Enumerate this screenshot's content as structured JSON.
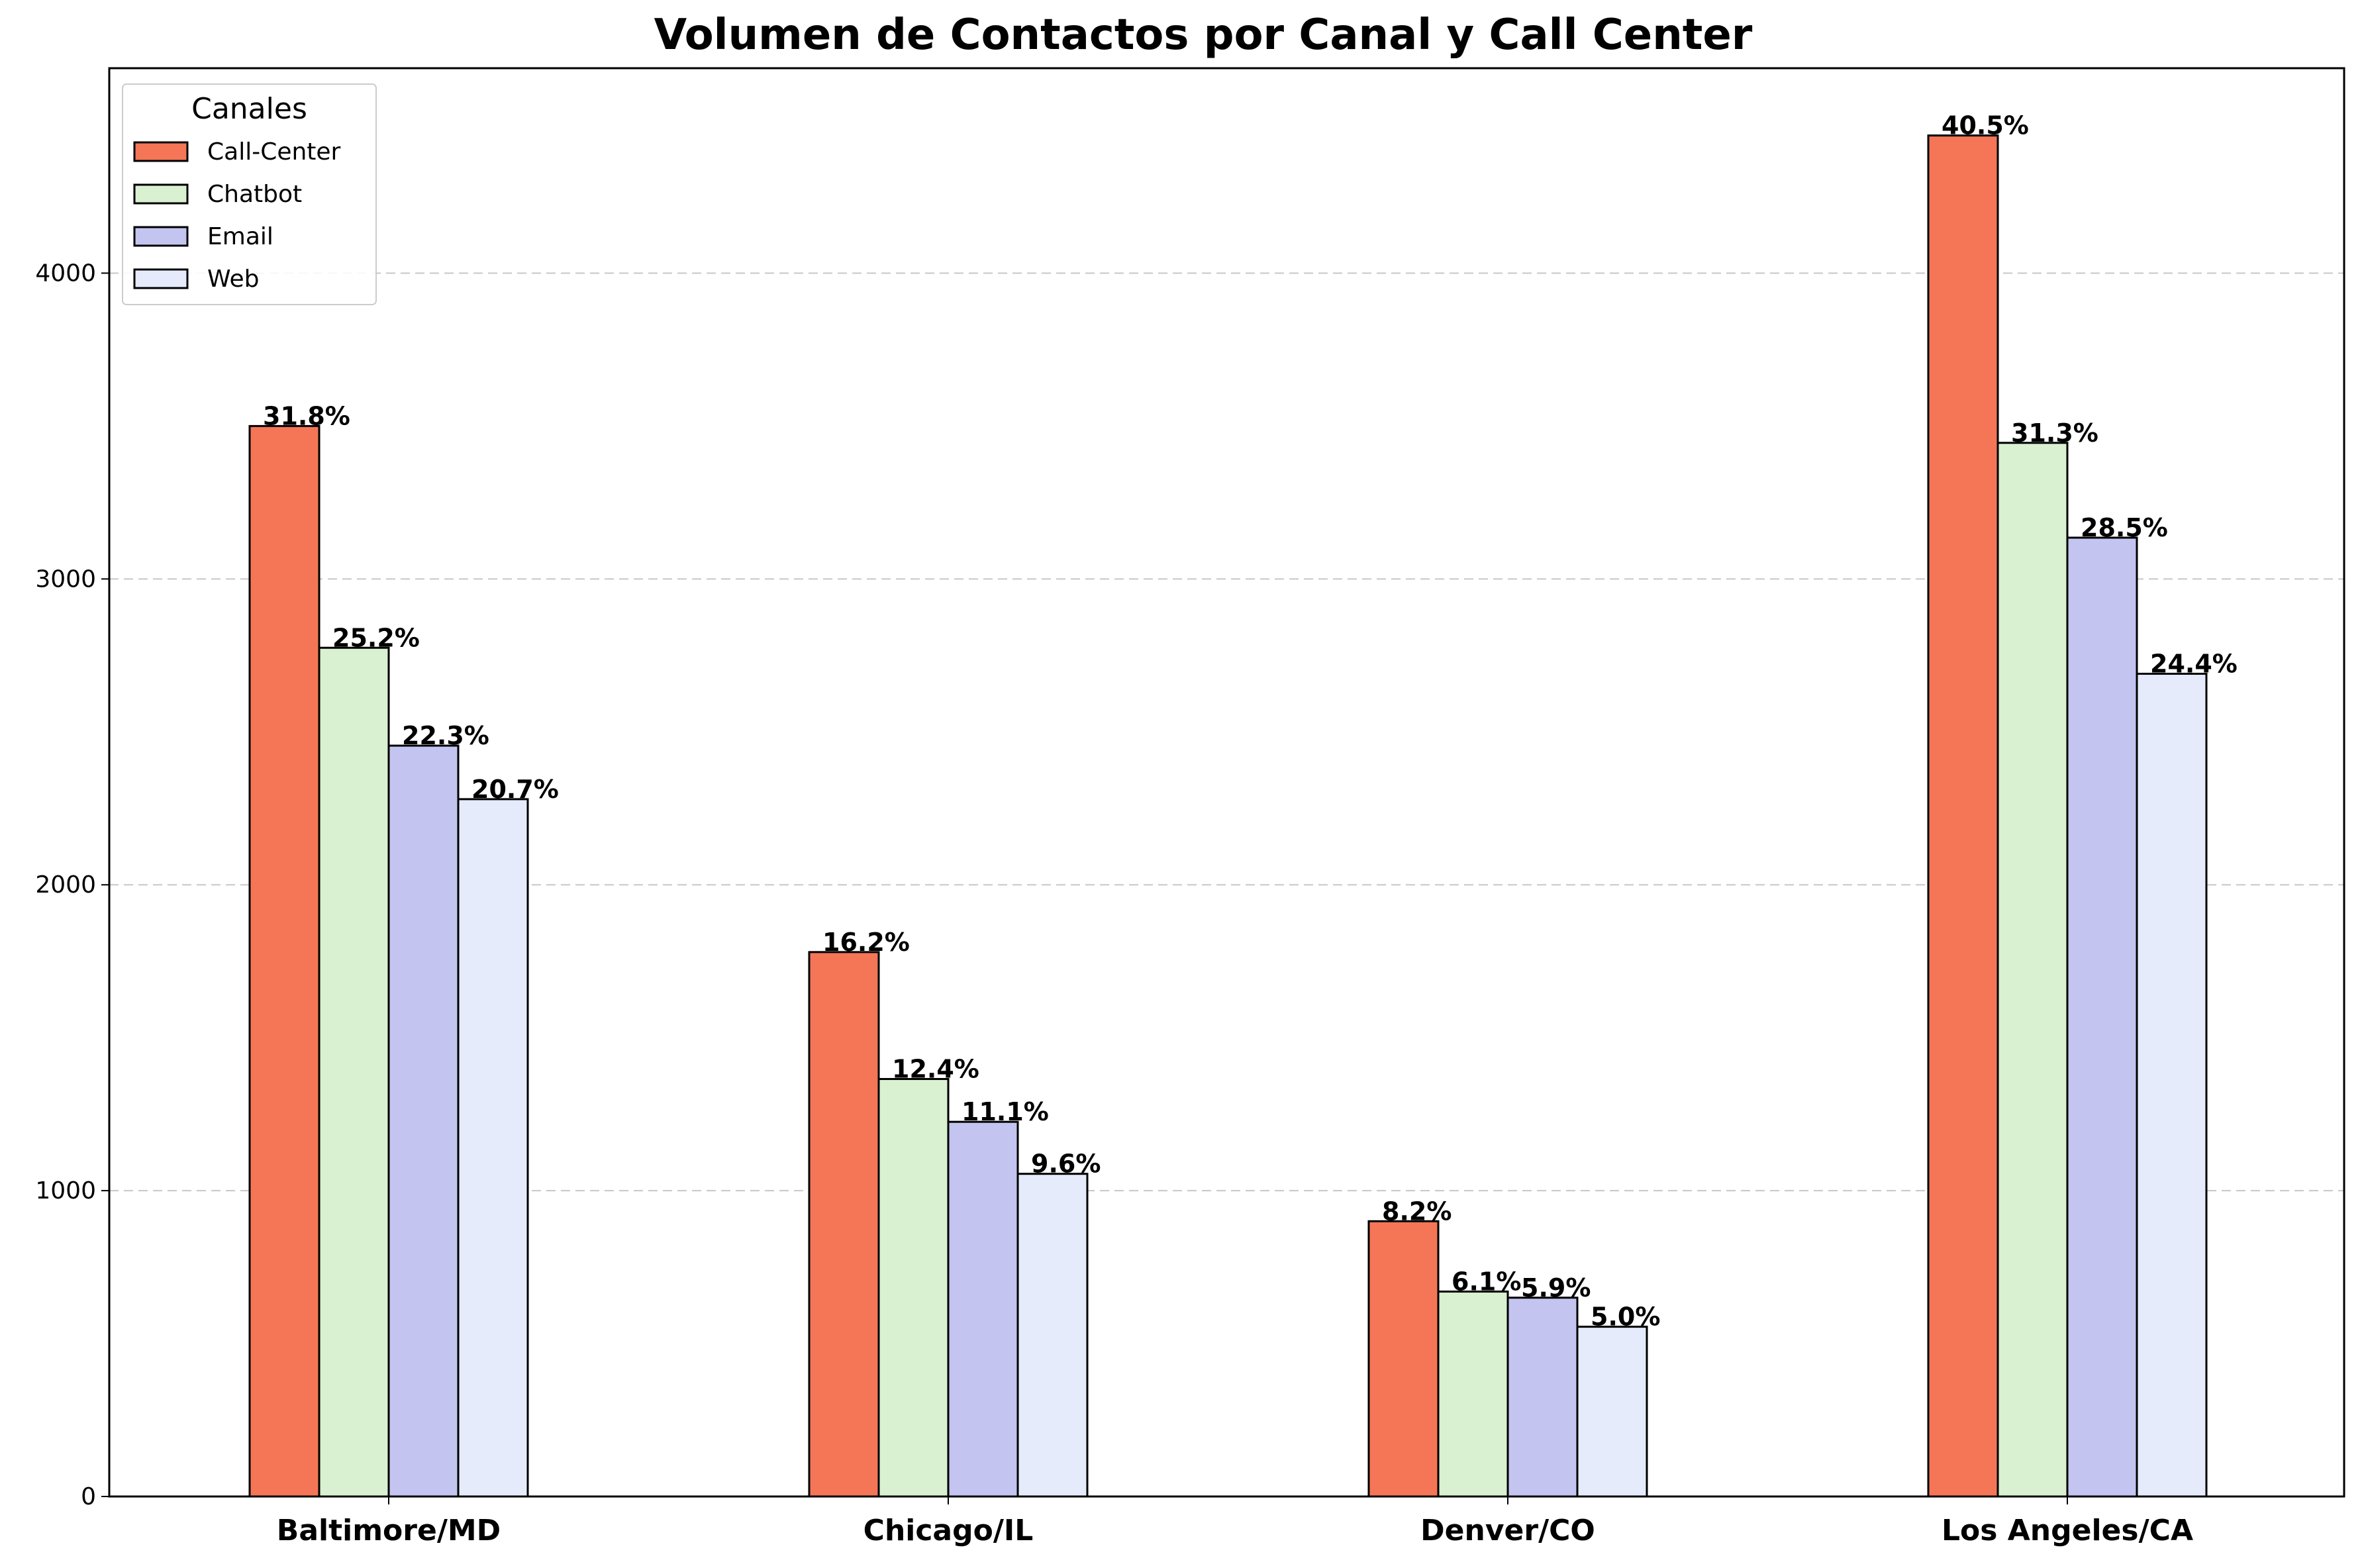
{
  "chart_data": {
    "type": "bar",
    "title": "Volumen de Contactos por Canal y Call Center",
    "xlabel": "",
    "ylabel": "",
    "categories": [
      "Baltimore/MD",
      "Chicago/IL",
      "Denver/CO",
      "Los Angeles/CA"
    ],
    "series": [
      {
        "name": "Call-Center",
        "color": "#f47656",
        "values": [
          3500,
          1780,
          900,
          4450
        ],
        "labels": [
          "31.8%",
          "16.2%",
          "8.2%",
          "40.5%"
        ]
      },
      {
        "name": "Chatbot",
        "color": "#d9f1d0",
        "values": [
          2775,
          1365,
          670,
          3445
        ],
        "labels": [
          "25.2%",
          "12.4%",
          "6.1%",
          "31.3%"
        ]
      },
      {
        "name": "Email",
        "color": "#c3c5f0",
        "values": [
          2455,
          1225,
          650,
          3135
        ],
        "labels": [
          "22.3%",
          "11.1%",
          "5.9%",
          "28.5%"
        ]
      },
      {
        "name": "Web",
        "color": "#e5ebfb",
        "values": [
          2280,
          1055,
          555,
          2690
        ],
        "labels": [
          "20.7%",
          "9.6%",
          "5.0%",
          "24.4%"
        ]
      }
    ],
    "ylim": [
      0,
      4670
    ],
    "yticks": [
      0,
      1000,
      2000,
      3000,
      4000
    ],
    "grid": "y, dashed",
    "legend": {
      "title": "Canales",
      "position": "top-left"
    }
  }
}
